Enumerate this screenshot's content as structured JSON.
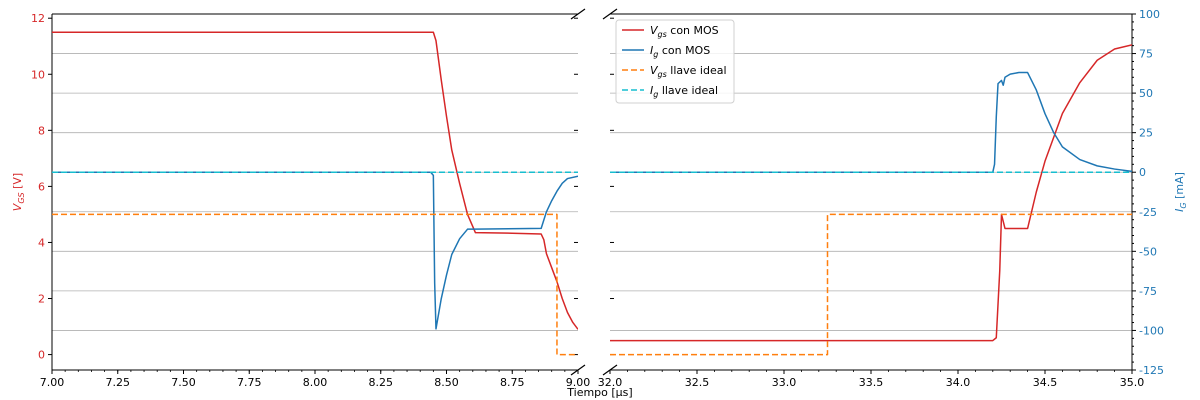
{
  "chart_data": {
    "type": "line",
    "xlabel": "Tiempo [μs]",
    "ylabel_left": "V_GS [V]",
    "ylabel_right": "I_G [mA]",
    "left_color": "#d62728",
    "right_color": "#1f77b4",
    "left_ylim": [
      -0.55,
      12.15
    ],
    "right_ylim": [
      -125,
      100
    ],
    "left_yticks": [
      0,
      2,
      4,
      6,
      8,
      10,
      12
    ],
    "right_yticks": [
      -125,
      -100,
      -75,
      -50,
      -25,
      0,
      25,
      50,
      75,
      100
    ],
    "grid": "horizontal",
    "grid_y_right": [
      -100,
      -75,
      -50,
      -25,
      0,
      25,
      50,
      75
    ],
    "panels": [
      {
        "xlim": [
          7.0,
          9.0
        ],
        "xticks": [
          "7.00",
          "7.25",
          "7.50",
          "7.75",
          "8.00",
          "8.25",
          "8.50",
          "8.75",
          "9.00"
        ]
      },
      {
        "xlim": [
          32.0,
          35.0
        ],
        "xticks": [
          "32.0",
          "32.5",
          "33.0",
          "33.5",
          "34.0",
          "34.5",
          "35.0"
        ]
      }
    ],
    "legend": {
      "placement": "upper-left of right panel",
      "entries": [
        {
          "label": "V_gs con MOS",
          "color": "#d62728",
          "dash": "solid"
        },
        {
          "label": "I_g con MOS",
          "color": "#1f77b4",
          "dash": "solid"
        },
        {
          "label": "V_gs llave ideal",
          "color": "#ff7f0e",
          "dash": "dashed"
        },
        {
          "label": "I_g llave ideal",
          "color": "#17becf",
          "dash": "dashed"
        }
      ]
    },
    "series": [
      {
        "name": "V_gs con MOS",
        "axis": "left",
        "color": "#d62728",
        "dash": "solid",
        "segments": [
          [
            [
              7.0,
              11.5
            ],
            [
              8.45,
              11.5
            ],
            [
              8.46,
              11.2
            ],
            [
              8.48,
              9.8
            ],
            [
              8.5,
              8.5
            ],
            [
              8.52,
              7.3
            ],
            [
              8.55,
              6.1
            ],
            [
              8.58,
              5.0
            ],
            [
              8.61,
              4.35
            ],
            [
              8.75,
              4.33
            ],
            [
              8.86,
              4.3
            ],
            [
              8.87,
              4.1
            ],
            [
              8.88,
              3.6
            ],
            [
              8.9,
              3.1
            ],
            [
              8.92,
              2.6
            ],
            [
              8.94,
              2.0
            ],
            [
              8.96,
              1.5
            ],
            [
              8.98,
              1.15
            ],
            [
              9.0,
              0.9
            ]
          ],
          [
            [
              32.0,
              0.5
            ],
            [
              34.2,
              0.5
            ],
            [
              34.22,
              0.6
            ],
            [
              34.24,
              3.0
            ],
            [
              34.25,
              5.0
            ],
            [
              34.27,
              4.5
            ],
            [
              34.4,
              4.5
            ],
            [
              34.45,
              5.8
            ],
            [
              34.5,
              6.9
            ],
            [
              34.6,
              8.6
            ],
            [
              34.7,
              9.7
            ],
            [
              34.8,
              10.5
            ],
            [
              34.9,
              10.9
            ],
            [
              35.0,
              11.05
            ],
            [
              35.0,
              11.05
            ]
          ]
        ]
      },
      {
        "name": "I_g con MOS",
        "axis": "right",
        "color": "#1f77b4",
        "dash": "solid",
        "segments": [
          [
            [
              7.0,
              0
            ],
            [
              8.44,
              0
            ],
            [
              8.45,
              -2
            ],
            [
              8.452,
              -30
            ],
            [
              8.455,
              -70
            ],
            [
              8.46,
              -99
            ],
            [
              8.48,
              -80
            ],
            [
              8.5,
              -65
            ],
            [
              8.52,
              -52
            ],
            [
              8.55,
              -42
            ],
            [
              8.58,
              -36
            ],
            [
              8.61,
              -36
            ],
            [
              8.86,
              -35.5
            ],
            [
              8.88,
              -25
            ],
            [
              8.9,
              -18
            ],
            [
              8.92,
              -12
            ],
            [
              8.94,
              -7
            ],
            [
              8.96,
              -4
            ],
            [
              9.0,
              -2.5
            ]
          ],
          [
            [
              32.0,
              0
            ],
            [
              34.2,
              0
            ],
            [
              34.21,
              5
            ],
            [
              34.22,
              35
            ],
            [
              34.23,
              56
            ],
            [
              34.25,
              58
            ],
            [
              34.26,
              55
            ],
            [
              34.27,
              60
            ],
            [
              34.3,
              62
            ],
            [
              34.35,
              63
            ],
            [
              34.4,
              63
            ],
            [
              34.45,
              52
            ],
            [
              34.5,
              37
            ],
            [
              34.55,
              25
            ],
            [
              34.6,
              16
            ],
            [
              34.7,
              8
            ],
            [
              34.8,
              4
            ],
            [
              34.9,
              2
            ],
            [
              35.0,
              0.5
            ]
          ]
        ]
      },
      {
        "name": "V_gs llave ideal",
        "axis": "left",
        "color": "#ff7f0e",
        "dash": "dashed",
        "segments": [
          [
            [
              7.0,
              5.0
            ],
            [
              8.92,
              5.0
            ],
            [
              8.92,
              0.0
            ],
            [
              9.0,
              0.0
            ]
          ],
          [
            [
              32.0,
              0.0
            ],
            [
              33.25,
              0.0
            ],
            [
              33.25,
              5.0
            ],
            [
              35.0,
              5.0
            ]
          ]
        ]
      },
      {
        "name": "I_g llave ideal",
        "axis": "right",
        "color": "#17becf",
        "dash": "dashed",
        "segments": [
          [
            [
              7.0,
              0
            ],
            [
              9.0,
              0
            ]
          ],
          [
            [
              32.0,
              0
            ],
            [
              35.0,
              0
            ]
          ]
        ]
      }
    ]
  }
}
